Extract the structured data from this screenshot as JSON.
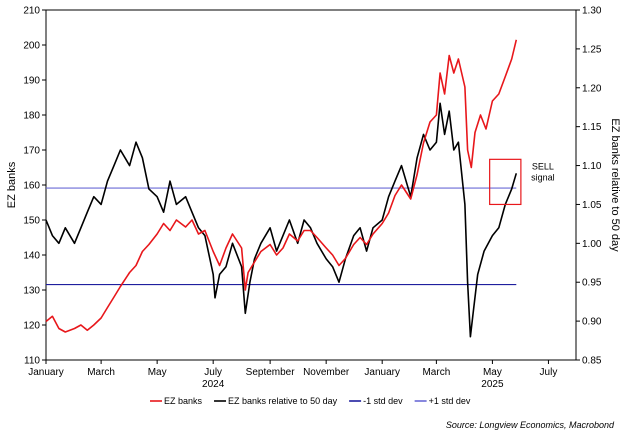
{
  "chart_data": {
    "type": "line",
    "left_axis": {
      "label": "EZ banks",
      "range": [
        110,
        210
      ],
      "ticks": [
        110,
        120,
        130,
        140,
        150,
        160,
        170,
        180,
        190,
        200,
        210
      ]
    },
    "right_axis": {
      "label": "EZ banks relative to 50 day",
      "range": [
        0.85,
        1.3
      ],
      "ticks": [
        "0.85",
        "0.90",
        "0.95",
        "1.00",
        "1.05",
        "1.10",
        "1.15",
        "1.20",
        "1.25",
        "1.30"
      ]
    },
    "x_axis": {
      "range": [
        "2024-01-01",
        "2025-07-31"
      ],
      "ticks": [
        {
          "date": "2024-01-01",
          "label": "January"
        },
        {
          "date": "2024-03-01",
          "label": "March"
        },
        {
          "date": "2024-05-01",
          "label": "May"
        },
        {
          "date": "2024-07-01",
          "label": "July"
        },
        {
          "date": "2024-09-01",
          "label": "September"
        },
        {
          "date": "2024-11-01",
          "label": "November"
        },
        {
          "date": "2025-01-01",
          "label": "January"
        },
        {
          "date": "2025-03-01",
          "label": "March"
        },
        {
          "date": "2025-05-01",
          "label": "May"
        },
        {
          "date": "2025-07-01",
          "label": "July"
        }
      ],
      "year_labels": [
        {
          "date": "2024-07-01",
          "label": "2024"
        },
        {
          "date": "2025-05-01",
          "label": "2025"
        }
      ]
    },
    "series": [
      {
        "name": "EZ banks",
        "axis": "left",
        "color": "#e8171b",
        "points": [
          [
            "2024-01-01",
            121
          ],
          [
            "2024-01-08",
            122.5
          ],
          [
            "2024-01-15",
            119
          ],
          [
            "2024-01-22",
            118
          ],
          [
            "2024-02-01",
            119
          ],
          [
            "2024-02-08",
            120
          ],
          [
            "2024-02-15",
            118.5
          ],
          [
            "2024-02-22",
            120
          ],
          [
            "2024-03-01",
            122
          ],
          [
            "2024-03-08",
            125
          ],
          [
            "2024-03-15",
            128
          ],
          [
            "2024-03-22",
            131
          ],
          [
            "2024-04-01",
            135
          ],
          [
            "2024-04-08",
            137
          ],
          [
            "2024-04-15",
            141
          ],
          [
            "2024-04-22",
            143
          ],
          [
            "2024-05-01",
            146
          ],
          [
            "2024-05-08",
            149
          ],
          [
            "2024-05-15",
            147
          ],
          [
            "2024-05-22",
            150
          ],
          [
            "2024-06-01",
            148
          ],
          [
            "2024-06-08",
            150
          ],
          [
            "2024-06-15",
            146
          ],
          [
            "2024-06-22",
            147
          ],
          [
            "2024-07-01",
            141
          ],
          [
            "2024-07-08",
            137
          ],
          [
            "2024-07-15",
            142
          ],
          [
            "2024-07-22",
            146
          ],
          [
            "2024-08-01",
            142
          ],
          [
            "2024-08-05",
            130
          ],
          [
            "2024-08-08",
            135
          ],
          [
            "2024-08-15",
            138
          ],
          [
            "2024-08-22",
            141
          ],
          [
            "2024-09-01",
            143
          ],
          [
            "2024-09-08",
            140
          ],
          [
            "2024-09-15",
            142
          ],
          [
            "2024-09-22",
            146
          ],
          [
            "2024-10-01",
            144
          ],
          [
            "2024-10-08",
            147
          ],
          [
            "2024-10-15",
            147
          ],
          [
            "2024-10-22",
            145
          ],
          [
            "2024-11-01",
            142
          ],
          [
            "2024-11-08",
            140
          ],
          [
            "2024-11-15",
            137
          ],
          [
            "2024-11-22",
            139
          ],
          [
            "2024-12-01",
            143
          ],
          [
            "2024-12-08",
            145
          ],
          [
            "2024-12-15",
            143
          ],
          [
            "2024-12-22",
            146
          ],
          [
            "2025-01-01",
            149
          ],
          [
            "2025-01-08",
            152
          ],
          [
            "2025-01-15",
            157
          ],
          [
            "2025-01-22",
            160
          ],
          [
            "2025-02-01",
            156
          ],
          [
            "2025-02-08",
            163
          ],
          [
            "2025-02-15",
            172
          ],
          [
            "2025-02-22",
            178
          ],
          [
            "2025-03-01",
            180
          ],
          [
            "2025-03-05",
            192
          ],
          [
            "2025-03-10",
            186
          ],
          [
            "2025-03-15",
            197
          ],
          [
            "2025-03-20",
            192
          ],
          [
            "2025-03-25",
            196
          ],
          [
            "2025-04-01",
            188
          ],
          [
            "2025-04-04",
            170
          ],
          [
            "2025-04-08",
            165
          ],
          [
            "2025-04-12",
            175
          ],
          [
            "2025-04-18",
            180
          ],
          [
            "2025-04-24",
            176
          ],
          [
            "2025-05-01",
            184
          ],
          [
            "2025-05-08",
            186
          ],
          [
            "2025-05-15",
            191
          ],
          [
            "2025-05-22",
            196
          ],
          [
            "2025-05-27",
            201.5
          ]
        ]
      },
      {
        "name": "EZ banks relative to 50 day",
        "axis": "right",
        "color": "#000000",
        "points": [
          [
            "2024-01-01",
            1.03
          ],
          [
            "2024-01-08",
            1.01
          ],
          [
            "2024-01-15",
            1.0
          ],
          [
            "2024-01-22",
            1.02
          ],
          [
            "2024-02-01",
            1.0
          ],
          [
            "2024-02-08",
            1.02
          ],
          [
            "2024-02-15",
            1.04
          ],
          [
            "2024-02-22",
            1.06
          ],
          [
            "2024-03-01",
            1.05
          ],
          [
            "2024-03-08",
            1.08
          ],
          [
            "2024-03-15",
            1.1
          ],
          [
            "2024-03-22",
            1.12
          ],
          [
            "2024-04-01",
            1.1
          ],
          [
            "2024-04-08",
            1.13
          ],
          [
            "2024-04-15",
            1.11
          ],
          [
            "2024-04-22",
            1.07
          ],
          [
            "2024-05-01",
            1.06
          ],
          [
            "2024-05-08",
            1.04
          ],
          [
            "2024-05-15",
            1.08
          ],
          [
            "2024-05-22",
            1.05
          ],
          [
            "2024-06-01",
            1.06
          ],
          [
            "2024-06-08",
            1.04
          ],
          [
            "2024-06-15",
            1.02
          ],
          [
            "2024-06-22",
            1.01
          ],
          [
            "2024-07-01",
            0.96
          ],
          [
            "2024-07-03",
            0.93
          ],
          [
            "2024-07-08",
            0.96
          ],
          [
            "2024-07-15",
            0.97
          ],
          [
            "2024-07-22",
            1.0
          ],
          [
            "2024-08-01",
            0.97
          ],
          [
            "2024-08-05",
            0.91
          ],
          [
            "2024-08-10",
            0.95
          ],
          [
            "2024-08-15",
            0.98
          ],
          [
            "2024-08-22",
            1.0
          ],
          [
            "2024-09-01",
            1.02
          ],
          [
            "2024-09-08",
            0.99
          ],
          [
            "2024-09-15",
            1.01
          ],
          [
            "2024-09-22",
            1.03
          ],
          [
            "2024-10-01",
            1.0
          ],
          [
            "2024-10-08",
            1.03
          ],
          [
            "2024-10-15",
            1.02
          ],
          [
            "2024-10-22",
            1.0
          ],
          [
            "2024-11-01",
            0.98
          ],
          [
            "2024-11-08",
            0.97
          ],
          [
            "2024-11-15",
            0.95
          ],
          [
            "2024-11-22",
            0.98
          ],
          [
            "2024-12-01",
            1.01
          ],
          [
            "2024-12-08",
            1.02
          ],
          [
            "2024-12-15",
            0.99
          ],
          [
            "2024-12-22",
            1.02
          ],
          [
            "2025-01-01",
            1.03
          ],
          [
            "2025-01-08",
            1.06
          ],
          [
            "2025-01-15",
            1.08
          ],
          [
            "2025-01-22",
            1.1
          ],
          [
            "2025-02-01",
            1.06
          ],
          [
            "2025-02-08",
            1.11
          ],
          [
            "2025-02-15",
            1.14
          ],
          [
            "2025-02-22",
            1.12
          ],
          [
            "2025-03-01",
            1.13
          ],
          [
            "2025-03-05",
            1.18
          ],
          [
            "2025-03-10",
            1.14
          ],
          [
            "2025-03-15",
            1.17
          ],
          [
            "2025-03-20",
            1.12
          ],
          [
            "2025-03-25",
            1.13
          ],
          [
            "2025-04-01",
            1.05
          ],
          [
            "2025-04-04",
            0.95
          ],
          [
            "2025-04-07",
            0.88
          ],
          [
            "2025-04-10",
            0.91
          ],
          [
            "2025-04-15",
            0.96
          ],
          [
            "2025-04-22",
            0.99
          ],
          [
            "2025-05-01",
            1.01
          ],
          [
            "2025-05-08",
            1.02
          ],
          [
            "2025-05-15",
            1.05
          ],
          [
            "2025-05-22",
            1.07
          ],
          [
            "2025-05-27",
            1.09
          ]
        ]
      }
    ],
    "reference_lines": [
      {
        "name": "-1 std dev",
        "axis": "right",
        "value": 0.947,
        "color": "#1f1f9e"
      },
      {
        "name": "+1 std dev",
        "axis": "right",
        "value": 1.071,
        "color": "#6b6bd6"
      }
    ],
    "annotations": [
      {
        "text_lines": [
          "SELL",
          "signal"
        ],
        "box": {
          "x_from": "2025-04-28",
          "x_to": "2025-06-01",
          "y_from": 1.05,
          "y_to": 1.108
        },
        "color": "#e8171b"
      }
    ],
    "legend": {
      "placement": "bottom"
    },
    "source": "Source: Longview Economics, Macrobond"
  }
}
